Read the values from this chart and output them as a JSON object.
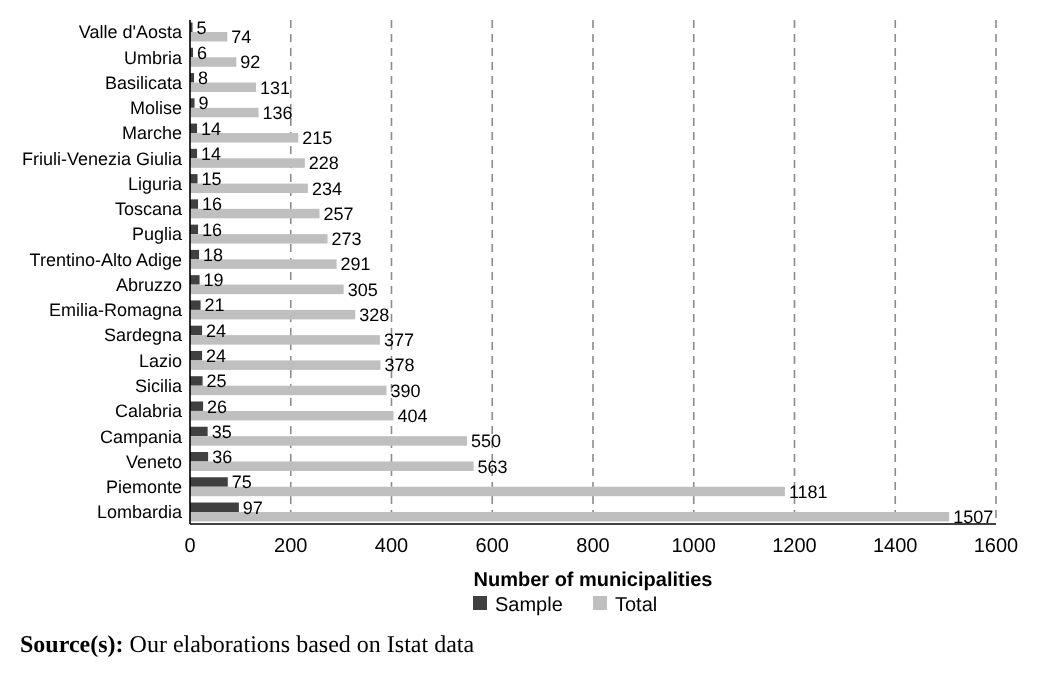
{
  "chart_data": {
    "type": "bar",
    "orientation": "horizontal",
    "xlabel": "Number of municipalities",
    "categories": [
      "Valle d'Aosta",
      "Umbria",
      "Basilicata",
      "Molise",
      "Marche",
      "Friuli-Venezia Giulia",
      "Liguria",
      "Toscana",
      "Puglia",
      "Trentino-Alto Adige",
      "Abruzzo",
      "Emilia-Romagna",
      "Sardegna",
      "Lazio",
      "Sicilia",
      "Calabria",
      "Campania",
      "Veneto",
      "Piemonte",
      "Lombardia"
    ],
    "series": [
      {
        "name": "Sample",
        "color": "#404040",
        "values": [
          5,
          6,
          8,
          9,
          14,
          14,
          15,
          16,
          16,
          18,
          19,
          21,
          24,
          24,
          25,
          26,
          35,
          36,
          75,
          97
        ]
      },
      {
        "name": "Total",
        "color": "#bfbfbf",
        "values": [
          74,
          92,
          131,
          136,
          215,
          228,
          234,
          257,
          273,
          291,
          305,
          328,
          377,
          378,
          390,
          404,
          550,
          563,
          1181,
          1507
        ]
      }
    ],
    "xlim": [
      0,
      1600
    ],
    "xticks": [
      0,
      200,
      400,
      600,
      800,
      1000,
      1200,
      1400,
      1600
    ],
    "grid": "x",
    "line_style": "dashed",
    "legend": "bottom",
    "data_labels": true,
    "annotations": [
      "Source(s): Our elaborations based on Istat data"
    ]
  }
}
